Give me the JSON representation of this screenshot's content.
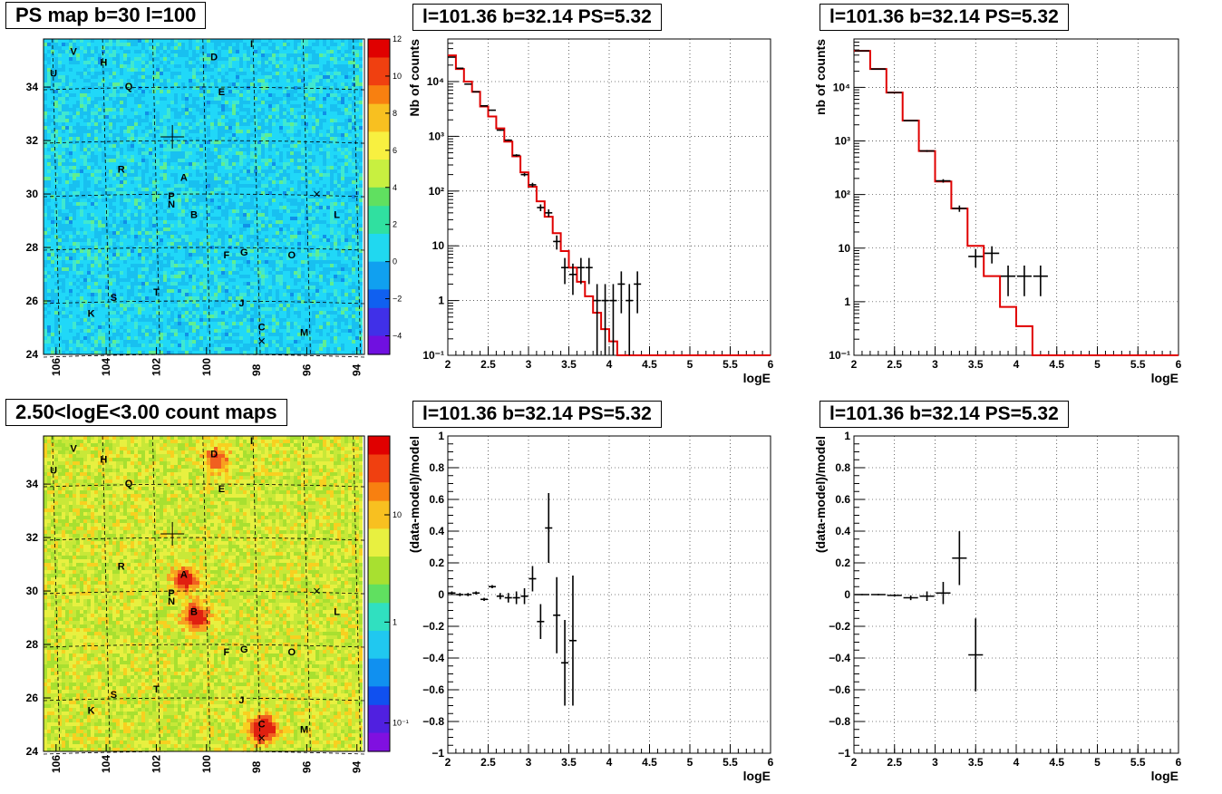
{
  "titles": {
    "map_top": "PS map b=30 l=100",
    "map_bottom": "2.50<logE<3.00 count maps",
    "plot_tm": "l=101.36 b=32.14 PS=5.32",
    "plot_tr": "l=101.36 b=32.14 PS=5.32",
    "plot_bm": "l=101.36 b=32.14 PS=5.32",
    "plot_br": "l=101.36 b=32.14 PS=5.32"
  },
  "colors": {
    "model_line": "#e00000",
    "data_marker": "#000000",
    "map_top_background": "#2ad8f0",
    "map_bottom_background": "#b8e030"
  },
  "chart_data": [
    {
      "id": "map_top",
      "type": "heatmap",
      "title": "PS map b=30 l=100",
      "x_ticks": [
        "106",
        "104",
        "102",
        "100",
        "98",
        "96",
        "94"
      ],
      "y_ticks": [
        "24",
        "26",
        "28",
        "30",
        "32",
        "34"
      ],
      "xlim": [
        106.5,
        93.7
      ],
      "ylim": [
        24,
        35.8
      ],
      "colorbar_ticks": [
        "−4",
        "−2",
        "0",
        "2",
        "4",
        "6",
        "8",
        "10",
        "12"
      ],
      "colorbar_range": [
        -5,
        12
      ],
      "colorbar_scale": "linear",
      "grid": true,
      "sources": [
        {
          "name": "V",
          "l": 105.3,
          "b": 35.2
        },
        {
          "name": "U",
          "l": 106.1,
          "b": 34.4
        },
        {
          "name": "H",
          "l": 104.1,
          "b": 34.8
        },
        {
          "name": "Q",
          "l": 103.1,
          "b": 33.9
        },
        {
          "name": "I",
          "l": 98.2,
          "b": 35.5
        },
        {
          "name": "D",
          "l": 99.7,
          "b": 35.0
        },
        {
          "name": "E",
          "l": 99.4,
          "b": 33.7
        },
        {
          "name": "R",
          "l": 103.4,
          "b": 30.8
        },
        {
          "name": "A",
          "l": 100.9,
          "b": 30.5
        },
        {
          "name": "P",
          "l": 101.4,
          "b": 29.8
        },
        {
          "name": "N",
          "l": 101.4,
          "b": 29.5
        },
        {
          "name": "B",
          "l": 100.5,
          "b": 29.1
        },
        {
          "name": "L",
          "l": 94.8,
          "b": 29.1
        },
        {
          "name": "F",
          "l": 99.2,
          "b": 27.6
        },
        {
          "name": "G",
          "l": 98.5,
          "b": 27.7
        },
        {
          "name": "O",
          "l": 96.6,
          "b": 27.6
        },
        {
          "name": "S",
          "l": 103.7,
          "b": 26.0
        },
        {
          "name": "T",
          "l": 102.0,
          "b": 26.2
        },
        {
          "name": "J",
          "l": 98.6,
          "b": 25.8
        },
        {
          "name": "K",
          "l": 104.6,
          "b": 25.4
        },
        {
          "name": "C",
          "l": 97.8,
          "b": 24.9
        },
        {
          "name": "M",
          "l": 96.1,
          "b": 24.7
        }
      ]
    },
    {
      "id": "map_bottom",
      "type": "heatmap",
      "title": "2.50<logE<3.00 count maps",
      "x_ticks": [
        "106",
        "104",
        "102",
        "100",
        "98",
        "96",
        "94"
      ],
      "y_ticks": [
        "24",
        "26",
        "28",
        "30",
        "32",
        "34"
      ],
      "xlim": [
        106.5,
        93.7
      ],
      "ylim": [
        24,
        35.8
      ],
      "colorbar_ticks": [
        "10⁻¹",
        "1",
        "10"
      ],
      "colorbar_scale": "log",
      "grid": true
    },
    {
      "id": "plot_tm",
      "type": "line",
      "title": "l=101.36 b=32.14 PS=5.32",
      "xlabel": "logE",
      "ylabel": "Nb of counts",
      "xlim": [
        2,
        6
      ],
      "ylim": [
        0.1,
        60000
      ],
      "yscale": "log",
      "x_ticks": [
        "2",
        "2.5",
        "3",
        "3.5",
        "4",
        "4.5",
        "5",
        "5.5",
        "6"
      ],
      "y_ticks": [
        "10⁻¹",
        "1",
        "10",
        "10²",
        "10³",
        "10⁴"
      ],
      "grid": true,
      "series": [
        {
          "values_x_edges": [
            2.0,
            2.1,
            2.2,
            2.3,
            2.4,
            2.5,
            2.6,
            2.7,
            2.8,
            2.9,
            3.0,
            3.1,
            3.2,
            3.3,
            3.4,
            3.5,
            3.6,
            3.7,
            3.8,
            3.9,
            4.0,
            4.1,
            4.2,
            6.0
          ],
          "values": [
            30000,
            17000,
            10000,
            6500,
            3500,
            2300,
            1400,
            800,
            430,
            220,
            120,
            65,
            34,
            17,
            8,
            4,
            2.2,
            1.2,
            0.6,
            0.3,
            0.18,
            0.1,
            0.1
          ],
          "style": "step"
        },
        {
          "x": [
            2.05,
            2.15,
            2.25,
            2.35,
            2.45,
            2.55,
            2.65,
            2.75,
            2.85,
            2.95,
            3.05,
            3.15,
            3.25,
            3.35,
            3.45,
            3.55,
            3.65,
            3.75,
            3.85,
            3.95,
            4.05,
            4.15,
            4.25,
            4.35
          ],
          "y": [
            28000,
            17500,
            9000,
            6500,
            3600,
            3000,
            1300,
            850,
            450,
            200,
            130,
            50,
            40,
            12,
            4,
            3,
            4,
            4,
            1,
            1,
            1,
            2,
            1,
            2
          ],
          "style": "errorbars"
        }
      ]
    },
    {
      "id": "plot_tr",
      "type": "line",
      "title": "l=101.36 b=32.14 PS=5.32",
      "xlabel": "logE",
      "ylabel": "nb of counts",
      "xlim": [
        2,
        6
      ],
      "ylim": [
        0.1,
        80000
      ],
      "yscale": "log",
      "x_ticks": [
        "2",
        "2.5",
        "3",
        "3.5",
        "4",
        "4.5",
        "5",
        "5.5",
        "6"
      ],
      "y_ticks": [
        "10⁻¹",
        "1",
        "10",
        "10²",
        "10³",
        "10⁴"
      ],
      "grid": true,
      "series": [
        {
          "values_x_edges": [
            2.0,
            2.2,
            2.4,
            2.6,
            2.8,
            3.0,
            3.2,
            3.4,
            3.6,
            3.8,
            4.0,
            4.2,
            6.0
          ],
          "values": [
            48000,
            22000,
            8000,
            2400,
            650,
            175,
            55,
            11,
            3,
            0.8,
            0.35,
            0.1
          ],
          "style": "step"
        },
        {
          "x": [
            2.1,
            2.3,
            2.5,
            2.7,
            2.9,
            3.1,
            3.3,
            3.5,
            3.7,
            3.9,
            4.1,
            4.3
          ],
          "y": [
            48000,
            22000,
            8000,
            2400,
            650,
            180,
            55,
            7,
            8,
            3,
            3,
            3
          ],
          "style": "errorbars"
        }
      ]
    },
    {
      "id": "plot_bm",
      "type": "scatter",
      "title": "l=101.36 b=32.14 PS=5.32",
      "xlabel": "logE",
      "ylabel": "(data-model)/model",
      "xlim": [
        2,
        6
      ],
      "ylim": [
        -1,
        1
      ],
      "x_ticks": [
        "2",
        "2.5",
        "3",
        "3.5",
        "4",
        "4.5",
        "5",
        "5.5",
        "6"
      ],
      "y_ticks": [
        "−1",
        "−0.8",
        "−0.6",
        "−0.4",
        "−0.2",
        "0",
        "0.2",
        "0.4",
        "0.6",
        "0.8",
        "1"
      ],
      "grid": true,
      "series": [
        {
          "x": [
            2.05,
            2.15,
            2.25,
            2.35,
            2.45,
            2.55,
            2.65,
            2.75,
            2.85,
            2.95,
            3.05,
            3.15,
            3.25,
            3.35,
            3.45,
            3.55
          ],
          "y": [
            0.01,
            0.0,
            0.0,
            0.01,
            -0.03,
            0.05,
            -0.01,
            -0.02,
            -0.02,
            -0.01,
            0.1,
            -0.17,
            0.42,
            -0.13,
            -0.43,
            -0.29
          ],
          "err": [
            0.01,
            0.01,
            0.01,
            0.01,
            0.01,
            0.01,
            0.02,
            0.03,
            0.04,
            0.05,
            0.08,
            0.11,
            0.22,
            0.24,
            0.27,
            0.41
          ],
          "style": "errorbars"
        }
      ]
    },
    {
      "id": "plot_br",
      "type": "scatter",
      "title": "l=101.36 b=32.14 PS=5.32",
      "xlabel": "logE",
      "ylabel": "(data-model)/model",
      "xlim": [
        2,
        6
      ],
      "ylim": [
        -1,
        1
      ],
      "x_ticks": [
        "2",
        "2.5",
        "3",
        "3.5",
        "4",
        "4.5",
        "5",
        "5.5",
        "6"
      ],
      "y_ticks": [
        "−1",
        "−0.8",
        "−0.6",
        "−0.4",
        "−0.2",
        "0",
        "0.2",
        "0.4",
        "0.6",
        "0.8",
        "1"
      ],
      "grid": true,
      "series": [
        {
          "x": [
            2.1,
            2.3,
            2.5,
            2.7,
            2.9,
            3.1,
            3.3,
            3.5
          ],
          "y": [
            0.0,
            0.0,
            -0.005,
            -0.02,
            -0.01,
            0.01,
            0.23,
            -0.38
          ],
          "err": [
            0.004,
            0.005,
            0.008,
            0.015,
            0.03,
            0.07,
            0.17,
            0.23
          ],
          "style": "errorbars"
        }
      ]
    }
  ]
}
